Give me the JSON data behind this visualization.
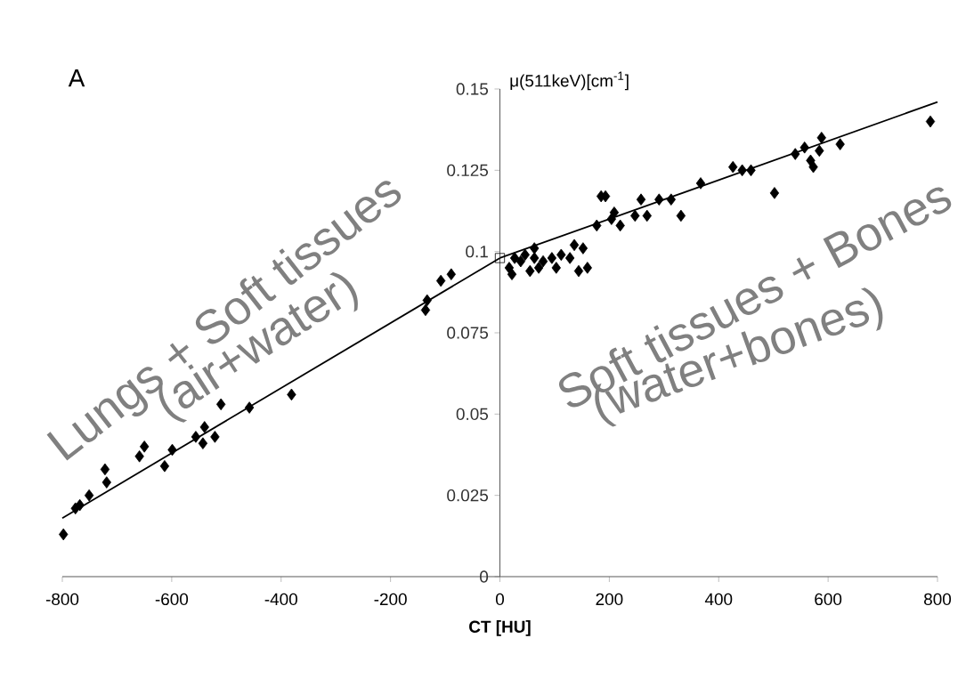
{
  "chart_data": {
    "type": "scatter",
    "title": "A",
    "xlabel": "CT [HU]",
    "ylabel": "μ(511keV)[cm$^{-1}$]",
    "xlim": [
      -800,
      800
    ],
    "xticks": [
      -800,
      -600,
      -400,
      -200,
      0,
      200,
      400,
      600,
      800
    ],
    "ylim": [
      0,
      0.15
    ],
    "yticks": [
      0,
      0.025,
      0.05,
      0.075,
      0.1,
      0.125,
      0.15
    ],
    "annotations": [
      "Lungs + Soft tissues",
      "(air+water)",
      "Soft tissues + Bones",
      "(water+bones)"
    ],
    "series": [
      {
        "marker": "diamond",
        "color": "#000000",
        "x": [
          -798,
          -776,
          -768,
          -751,
          -722,
          -719,
          -659,
          -650,
          -613,
          -599,
          -556,
          -540,
          -543,
          -521,
          -510,
          -458,
          -381,
          -136,
          -133,
          -108,
          -89,
          17,
          22,
          27,
          38,
          46,
          55,
          63,
          63,
          71,
          79,
          95,
          103,
          112,
          128,
          136,
          144,
          152,
          160,
          177,
          185,
          193,
          204,
          209,
          220,
          247,
          258,
          269,
          291,
          313,
          331,
          367,
          426,
          443,
          459,
          502,
          540,
          557,
          568,
          573,
          584,
          588,
          622,
          787
        ],
        "values": [
          0.013,
          0.021,
          0.022,
          0.025,
          0.033,
          0.029,
          0.037,
          0.04,
          0.034,
          0.039,
          0.043,
          0.046,
          0.041,
          0.043,
          0.053,
          0.052,
          0.056,
          0.082,
          0.085,
          0.091,
          0.093,
          0.095,
          0.093,
          0.098,
          0.097,
          0.099,
          0.094,
          0.098,
          0.101,
          0.095,
          0.097,
          0.098,
          0.095,
          0.099,
          0.098,
          0.102,
          0.094,
          0.101,
          0.095,
          0.108,
          0.117,
          0.117,
          0.11,
          0.112,
          0.108,
          0.111,
          0.116,
          0.111,
          0.116,
          0.116,
          0.111,
          0.121,
          0.126,
          0.125,
          0.125,
          0.118,
          0.13,
          0.132,
          0.128,
          0.126,
          0.131,
          0.135,
          0.133,
          0.14
        ]
      },
      {
        "marker": "square",
        "color": "#000000",
        "x": [
          0
        ],
        "values": [
          0.098
        ]
      },
      {
        "type": "line",
        "color": "#000000",
        "x": [
          -800,
          0
        ],
        "values": [
          0.018,
          0.098
        ]
      },
      {
        "type": "line",
        "color": "#000000",
        "x": [
          0,
          800
        ],
        "values": [
          0.098,
          0.146
        ]
      }
    ]
  }
}
